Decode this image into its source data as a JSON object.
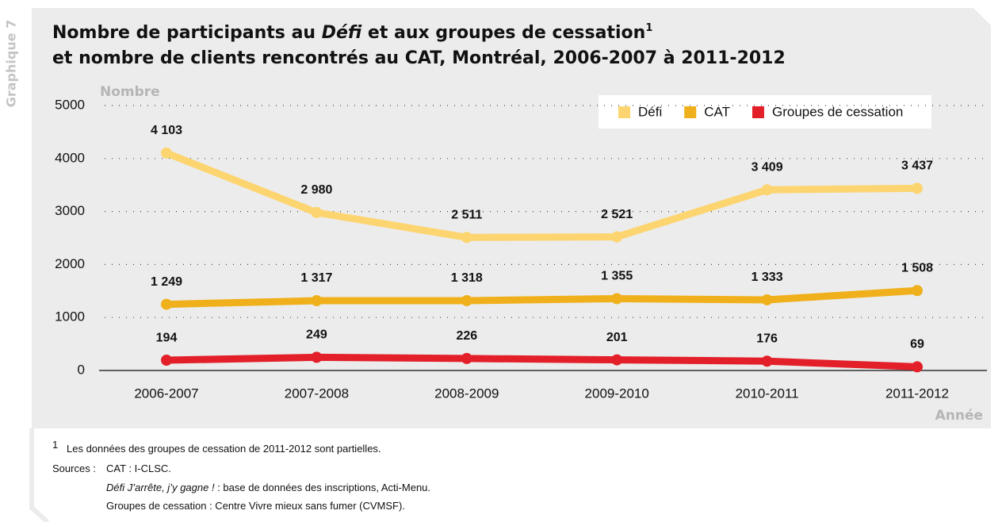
{
  "side_label": "Graphique 7",
  "chart_data": {
    "type": "line",
    "title": {
      "line1": [
        "Nombre de participants au ",
        "Défi",
        " et aux groupes de cessation",
        "1"
      ],
      "line2": "et nombre de clients rencontrés au CAT, Montréal, 2006-2007 à 2011-2012"
    },
    "ylabel": "Nombre",
    "xlabel": "Année",
    "categories": [
      "2006-2007",
      "2007-2008",
      "2008-2009",
      "2009-2010",
      "2010-2011",
      "2011-2012"
    ],
    "series": [
      {
        "name": "Défi",
        "color": "#fdd570",
        "values": [
          4103,
          2980,
          2511,
          2521,
          3409,
          3437
        ],
        "value_labels": [
          "4 103",
          "2 980",
          "2 511",
          "2 521",
          "3 409",
          "3 437"
        ]
      },
      {
        "name": "CAT",
        "color": "#f0b01c",
        "values": [
          1249,
          1317,
          1318,
          1355,
          1333,
          1508
        ],
        "value_labels": [
          "1 249",
          "1 317",
          "1 318",
          "1 355",
          "1 333",
          "1 508"
        ]
      },
      {
        "name": "Groupes de cessation",
        "color": "#e3202a",
        "values": [
          194,
          249,
          226,
          201,
          176,
          69
        ]
      }
    ],
    "ylim": [
      0,
      5000
    ],
    "yticks": [
      0,
      1000,
      2000,
      3000,
      4000,
      5000
    ],
    "grid": true,
    "legend": "top-right"
  },
  "footnote": {
    "marker": "1",
    "text": "Les données des groupes de cessation de 2011-2012 sont partielles."
  },
  "sources": {
    "label": "Sources :",
    "line1": "CAT : I-CLSC.",
    "line2": [
      "Défi J’arrête, j’y gagne !",
      " : base de données des inscriptions, Acti-Menu."
    ],
    "line3": "Groupes de cessation : Centre Vivre mieux sans fumer (CVMSF)."
  }
}
